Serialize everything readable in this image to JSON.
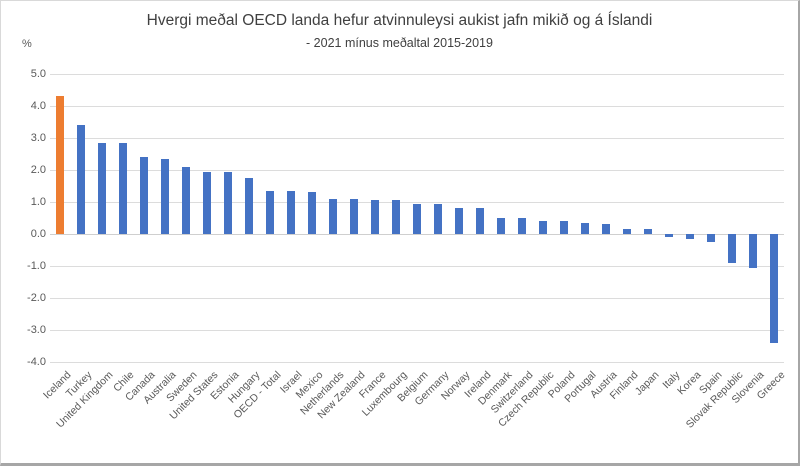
{
  "chart": {
    "title": "Hvergi meðal OECD landa hefur atvinnuleysi aukist jafn mikið og á Íslandi",
    "subtitle": "- 2021 mínus meðaltal 2015-2019",
    "unit_label": "%"
  },
  "chart_data": {
    "type": "bar",
    "title": "Hvergi meðal OECD landa hefur atvinnuleysi aukist jafn mikið og á Íslandi",
    "subtitle": "- 2021 mínus meðaltal 2015-2019",
    "xlabel": "",
    "ylabel": "%",
    "ylim": [
      -4.0,
      5.0
    ],
    "ytick_step": 1.0,
    "grid": true,
    "legend": false,
    "categories": [
      "Iceland",
      "Turkey",
      "United Kingdom",
      "Chile",
      "Canada",
      "Australia",
      "Sweden",
      "United States",
      "Estonia",
      "Hungary",
      "OECD - Total",
      "Israel",
      "Mexico",
      "Netherlands",
      "New Zealand",
      "France",
      "Luxembourg",
      "Belgium",
      "Germany",
      "Norway",
      "Ireland",
      "Denmark",
      "Switzerland",
      "Czech Republic",
      "Poland",
      "Portugal",
      "Austria",
      "Finland",
      "Japan",
      "Italy",
      "Korea",
      "Spain",
      "Slovak Republic",
      "Slovenia",
      "Greece"
    ],
    "values": [
      4.3,
      3.4,
      2.85,
      2.85,
      2.4,
      2.35,
      2.1,
      1.95,
      1.95,
      1.75,
      1.35,
      1.35,
      1.3,
      1.1,
      1.1,
      1.05,
      1.05,
      0.95,
      0.95,
      0.8,
      0.8,
      0.5,
      0.5,
      0.4,
      0.4,
      0.35,
      0.3,
      0.15,
      0.15,
      -0.1,
      -0.15,
      -0.25,
      -0.9,
      -1.05,
      -3.4
    ],
    "highlight_category": "Iceland",
    "bar_color": "#4472C4",
    "highlight_color": "#ED7D31"
  }
}
